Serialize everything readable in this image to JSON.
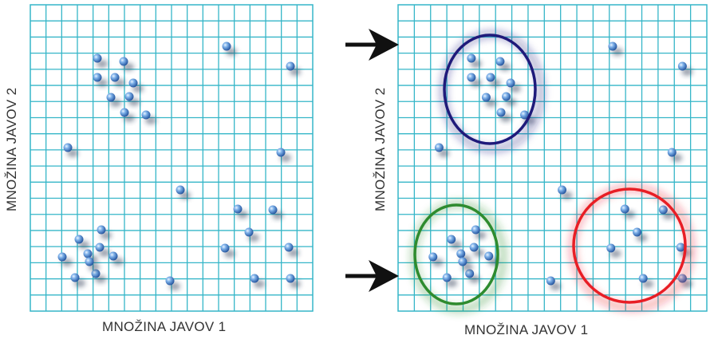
{
  "panels": [
    {
      "id": "before",
      "xlabel": "MNOŽINA JAVOV 1",
      "ylabel": "MNOŽINA JAVOV 2",
      "points": [
        [
          10.3,
          1.7
        ],
        [
          10.9,
          1.7
        ],
        [
          11.6,
          2.2
        ],
        [
          10.3,
          2.4
        ],
        [
          10.9,
          2.5
        ],
        [
          11.3,
          2.7
        ],
        [
          11.6,
          3.2
        ],
        [
          10.7,
          3.2
        ],
        [
          11.2,
          3.4
        ],
        [
          10.7,
          3.7
        ],
        [
          11.8,
          3.9
        ],
        [
          16.7,
          0.9
        ],
        [
          17.5,
          2.0
        ],
        [
          16.9,
          6.1
        ],
        [
          12.8,
          7.7
        ],
        [
          12.4,
          10.1
        ],
        [
          14.4,
          10.6
        ],
        [
          15.6,
          11.5
        ],
        [
          15.3,
          11.8
        ],
        [
          8.8,
          10.3
        ],
        [
          9.0,
          11.3
        ],
        [
          9.5,
          12.9
        ],
        [
          9.6,
          13.9
        ],
        [
          10.6,
          12.3
        ],
        [
          10.6,
          13.4
        ],
        [
          9.8,
          13.2
        ],
        [
          10.5,
          12.9
        ],
        [
          10.8,
          13.2
        ],
        [
          10.3,
          13.9
        ],
        [
          11.3,
          14.1
        ],
        [
          10.1,
          14.5
        ]
      ]
    },
    {
      "id": "after",
      "xlabel": "MNOŽINA JAVOV 1",
      "ylabel": "MNOŽINA JAVOV 2",
      "points": [
        [
          10.3,
          1.7
        ],
        [
          10.9,
          1.7
        ],
        [
          11.6,
          2.2
        ],
        [
          10.3,
          2.4
        ],
        [
          10.9,
          2.5
        ],
        [
          11.3,
          2.7
        ],
        [
          11.6,
          3.2
        ],
        [
          10.7,
          3.2
        ],
        [
          11.2,
          3.4
        ],
        [
          10.7,
          3.7
        ],
        [
          11.8,
          3.9
        ],
        [
          16.7,
          0.9
        ],
        [
          17.5,
          2.0
        ],
        [
          16.9,
          6.1
        ],
        [
          12.8,
          7.7
        ],
        [
          12.4,
          10.1
        ],
        [
          14.4,
          10.6
        ],
        [
          15.6,
          11.5
        ],
        [
          15.3,
          11.8
        ],
        [
          8.8,
          10.3
        ],
        [
          9.0,
          11.3
        ],
        [
          9.5,
          12.9
        ],
        [
          9.6,
          13.9
        ],
        [
          10.6,
          12.3
        ],
        [
          10.6,
          13.4
        ],
        [
          9.8,
          13.2
        ],
        [
          10.5,
          12.9
        ],
        [
          10.8,
          13.2
        ],
        [
          10.3,
          13.9
        ],
        [
          11.3,
          14.1
        ],
        [
          10.1,
          14.5
        ]
      ],
      "clusters": [
        {
          "name": "blue-cluster",
          "color": "#1f1a7a"
        },
        {
          "name": "green-cluster",
          "color": "#2e8b2e"
        },
        {
          "name": "red-cluster",
          "color": "#e81e25"
        }
      ]
    }
  ],
  "colors": {
    "grid": "#35b6c8",
    "point": "#3a78c2",
    "arrow": "#111111"
  }
}
